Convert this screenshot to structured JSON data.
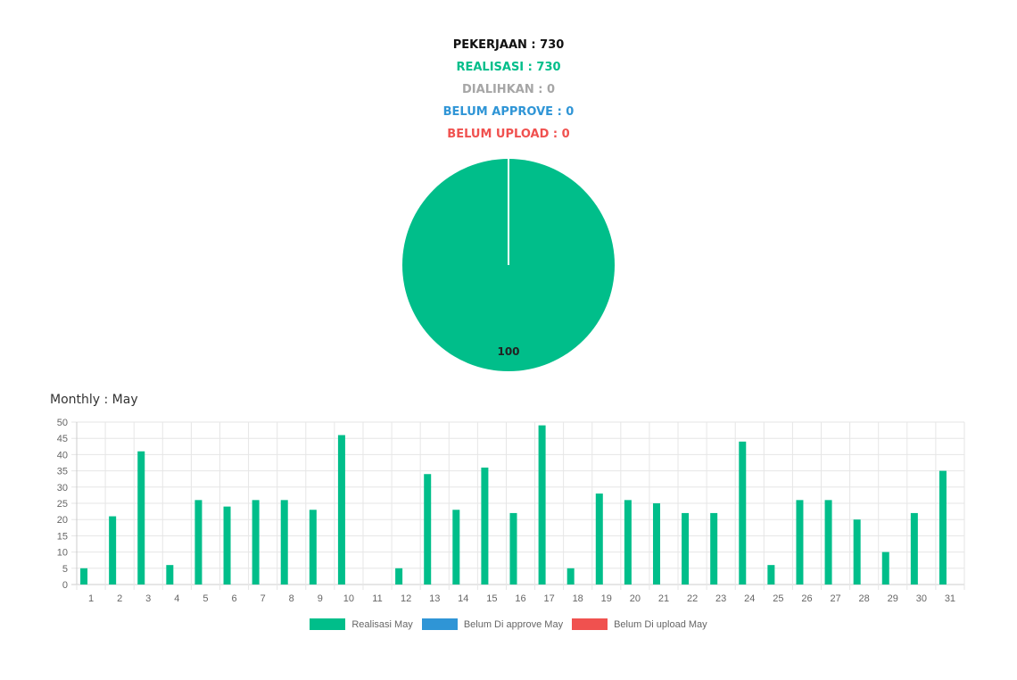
{
  "summary": {
    "pekerjaan": "PEKERJAAN : 730",
    "realisasi": "REALISASI : 730",
    "dialihkan": "DIALIHKAN : 0",
    "belum_approve": "BELUM APPROVE : 0",
    "belum_upload": "BELUM UPLOAD : 0"
  },
  "colors": {
    "realisasi": "#00be8a",
    "dialihkan": "#a6a6a6",
    "belum_approve": "#2f95d6",
    "belum_upload": "#f0514f"
  },
  "monthly_title": "Monthly : May",
  "chart_data": [
    {
      "type": "pie",
      "slices": [
        {
          "label": "Realisasi",
          "value": 100,
          "color": "#00be8a"
        },
        {
          "label": "Dialihkan",
          "value": 0,
          "color": "#a6a6a6"
        },
        {
          "label": "Belum Approve",
          "value": 0,
          "color": "#2f95d6"
        },
        {
          "label": "Belum Upload",
          "value": 0,
          "color": "#f0514f"
        }
      ],
      "data_label": "100"
    },
    {
      "type": "bar",
      "title": "Monthly : May",
      "categories": [
        "1",
        "2",
        "3",
        "4",
        "5",
        "6",
        "7",
        "8",
        "9",
        "10",
        "11",
        "12",
        "13",
        "14",
        "15",
        "16",
        "17",
        "18",
        "19",
        "20",
        "21",
        "22",
        "23",
        "24",
        "25",
        "26",
        "27",
        "28",
        "29",
        "30",
        "31"
      ],
      "series": [
        {
          "name": "Realisasi May",
          "color": "#00be8a",
          "values": [
            5,
            21,
            41,
            6,
            26,
            24,
            26,
            26,
            23,
            46,
            0,
            5,
            34,
            23,
            36,
            22,
            49,
            5,
            28,
            26,
            25,
            22,
            22,
            44,
            6,
            26,
            26,
            20,
            10,
            22,
            35
          ]
        },
        {
          "name": "Belum Di approve May",
          "color": "#2f95d6",
          "values": [
            0,
            0,
            0,
            0,
            0,
            0,
            0,
            0,
            0,
            0,
            0,
            0,
            0,
            0,
            0,
            0,
            0,
            0,
            0,
            0,
            0,
            0,
            0,
            0,
            0,
            0,
            0,
            0,
            0,
            0,
            0
          ]
        },
        {
          "name": "Belum Di upload May",
          "color": "#f0514f",
          "values": [
            0,
            0,
            0,
            0,
            0,
            0,
            0,
            0,
            0,
            0,
            0,
            0,
            0,
            0,
            0,
            0,
            0,
            0,
            0,
            0,
            0,
            0,
            0,
            0,
            0,
            0,
            0,
            0,
            0,
            0,
            0
          ]
        }
      ],
      "ylim": [
        0,
        50
      ],
      "yticks": [
        0,
        5,
        10,
        15,
        20,
        25,
        30,
        35,
        40,
        45,
        50
      ],
      "grid": true,
      "legend_position": "bottom"
    }
  ]
}
